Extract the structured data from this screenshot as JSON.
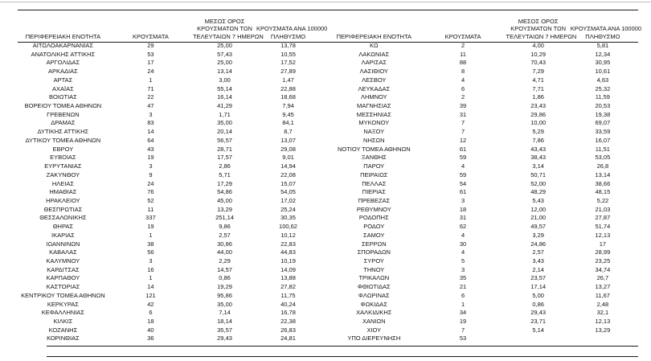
{
  "report": {
    "col_headers": {
      "region": "ΠΕΡΙΦΕΡΕΙΑΚΗ ΕΝΟΤΗΤΑ",
      "cases": "ΚΡΟΥΣΜΑΤΑ",
      "avg7_lines": [
        "ΜΕΣΟΣ ΟΡΟΣ",
        "ΚΡΟΥΣΜΑΤΩΝ ΤΩΝ",
        "ΤΕΛΕΥΤΑΙΩΝ 7 ΗΜΕΡΩΝ"
      ],
      "per100k_lines": [
        "ΚΡΟΥΣΜΑΤΑ ΑΝΑ 100000",
        "ΠΛΗΘΥΣΜΟ"
      ]
    },
    "left_table": {
      "rows": [
        [
          "ΑΙΤΩΛΟΑΚΑΡΝΑΝΙΑΣ",
          "29",
          "25,00",
          "13,78"
        ],
        [
          "ΑΝΑΤΟΛΙΚΗΣ ΑΤΤΙΚΗΣ",
          "53",
          "57,43",
          "10,55"
        ],
        [
          "ΑΡΓΟΛΙΔΑΣ",
          "17",
          "25,00",
          "17,52"
        ],
        [
          "ΑΡΚΑΔΙΑΣ",
          "24",
          "13,14",
          "27,89"
        ],
        [
          "ΑΡΤΑΣ",
          "1",
          "3,00",
          "1,47"
        ],
        [
          "ΑΧΑΪΑΣ",
          "71",
          "55,14",
          "22,88"
        ],
        [
          "ΒΟΙΩΤΙΑΣ",
          "22",
          "16,14",
          "18,68"
        ],
        [
          "ΒΟΡΕΙΟΥ ΤΟΜΕΑ ΑΘΗΝΩΝ",
          "47",
          "41,29",
          "7,94"
        ],
        [
          "ΓΡΕΒΕΝΩΝ",
          "3",
          "1,71",
          "9,45"
        ],
        [
          "ΔΡΑΜΑΣ",
          "83",
          "35,00",
          "84,1"
        ],
        [
          "ΔΥΤΙΚΗΣ ΑΤΤΙΚΗΣ",
          "14",
          "20,14",
          "8,7"
        ],
        [
          "ΔΥΤΙΚΟΥ ΤΟΜΕΑ ΑΘΗΝΩΝ",
          "64",
          "56,57",
          "13,07"
        ],
        [
          "ΕΒΡΟΥ",
          "43",
          "28,71",
          "29,08"
        ],
        [
          "ΕΥΒΟΙΑΣ",
          "19",
          "17,57",
          "9,01"
        ],
        [
          "ΕΥΡΥΤΑΝΙΑΣ",
          "3",
          "2,86",
          "14,94"
        ],
        [
          "ΖΑΚΥΝΘΟΥ",
          "9",
          "5,71",
          "22,08"
        ],
        [
          "ΗΛΕΙΑΣ",
          "24",
          "17,29",
          "15,07"
        ],
        [
          "ΗΜΑΘΙΑΣ",
          "76",
          "54,86",
          "54,05"
        ],
        [
          "ΗΡΑΚΛΕΙΟΥ",
          "52",
          "45,00",
          "17,02"
        ],
        [
          "ΘΕΣΠΡΩΤΙΑΣ",
          "11",
          "13,29",
          "25,24"
        ],
        [
          "ΘΕΣΣΑΛΟΝΙΚΗΣ",
          "337",
          "251,14",
          "30,35"
        ],
        [
          "ΘΗΡΑΣ",
          "19",
          "9,86",
          "100,62"
        ],
        [
          "ΙΚΑΡΙΑΣ",
          "1",
          "2,57",
          "10,12"
        ],
        [
          "ΙΩΑΝΝΙΝΩΝ",
          "38",
          "30,86",
          "22,83"
        ],
        [
          "ΚΑΒΑΛΑΣ",
          "56",
          "44,00",
          "44,83"
        ],
        [
          "ΚΑΛΥΜΝΟΥ",
          "3",
          "2,29",
          "10,19"
        ],
        [
          "ΚΑΡΔΙΤΣΑΣ",
          "16",
          "14,57",
          "14,09"
        ],
        [
          "ΚΑΡΠΑΘΟΥ",
          "1",
          "0,86",
          "13,88"
        ],
        [
          "ΚΑΣΤΟΡΙΑΣ",
          "14",
          "19,29",
          "27,82"
        ],
        [
          "ΚΕΝΤΡΙΚΟΥ ΤΟΜΕΑ ΑΘΗΝΩΝ",
          "121",
          "95,86",
          "11,75"
        ],
        [
          "ΚΕΡΚΥΡΑΣ",
          "42",
          "35,00",
          "40,24"
        ],
        [
          "ΚΕΦΑΛΛΗΝΙΑΣ",
          "6",
          "7,14",
          "16,78"
        ],
        [
          "ΚΙΛΚΙΣ",
          "18",
          "18,14",
          "22,38"
        ],
        [
          "ΚΟΖΑΝΗΣ",
          "40",
          "35,57",
          "26,83"
        ],
        [
          "ΚΟΡΙΝΘΙΑΣ",
          "36",
          "29,43",
          "24,81"
        ]
      ]
    },
    "right_table": {
      "rows": [
        [
          "ΚΩ",
          "2",
          "4,00",
          "5,81"
        ],
        [
          "ΛΑΚΩΝΙΑΣ",
          "11",
          "10,29",
          "12,34"
        ],
        [
          "ΛΑΡΙΣΑΣ",
          "88",
          "70,43",
          "30,95"
        ],
        [
          "ΛΑΣΙΘΙΟΥ",
          "8",
          "7,29",
          "10,61"
        ],
        [
          "ΛΕΣΒΟΥ",
          "4",
          "4,71",
          "4,63"
        ],
        [
          "ΛΕΥΚΑΔΑΣ",
          "6",
          "7,71",
          "25,32"
        ],
        [
          "ΛΗΜΝΟΥ",
          "2",
          "1,86",
          "11,59"
        ],
        [
          "ΜΑΓΝΗΣΙΑΣ",
          "39",
          "23,43",
          "20,53"
        ],
        [
          "ΜΕΣΣΗΝΙΑΣ",
          "31",
          "29,86",
          "19,38"
        ],
        [
          "ΜΥΚΟΝΟΥ",
          "7",
          "10,00",
          "69,07"
        ],
        [
          "ΝΑΞΟΥ",
          "7",
          "5,29",
          "33,59"
        ],
        [
          "ΝΗΣΩΝ",
          "12",
          "7,86",
          "16,07"
        ],
        [
          "ΝΟΤΙΟΥ ΤΟΜΕΑ ΑΘΗΝΩΝ",
          "61",
          "43,43",
          "11,51"
        ],
        [
          "ΞΑΝΘΗΣ",
          "59",
          "38,43",
          "53,05"
        ],
        [
          "ΠΑΡΟΥ",
          "4",
          "3,14",
          "26,8"
        ],
        [
          "ΠΕΙΡΑΙΩΣ",
          "59",
          "50,71",
          "13,14"
        ],
        [
          "ΠΕΛΛΑΣ",
          "54",
          "52,00",
          "38,66"
        ],
        [
          "ΠΙΕΡΙΑΣ",
          "61",
          "48,29",
          "48,15"
        ],
        [
          "ΠΡΕΒΕΖΑΣ",
          "3",
          "5,43",
          "5,22"
        ],
        [
          "ΡΕΘΥΜΝΟΥ",
          "18",
          "12,00",
          "21,03"
        ],
        [
          "ΡΟΔΟΠΗΣ",
          "31",
          "21,00",
          "27,87"
        ],
        [
          "ΡΟΔΟΥ",
          "62",
          "49,57",
          "51,74"
        ],
        [
          "ΣΑΜΟΥ",
          "4",
          "3,29",
          "12,13"
        ],
        [
          "ΣΕΡΡΩΝ",
          "30",
          "24,86",
          "17"
        ],
        [
          "ΣΠΟΡΑΔΩΝ",
          "4",
          "2,57",
          "28,99"
        ],
        [
          "ΣΥΡΟΥ",
          "5",
          "3,43",
          "23,25"
        ],
        [
          "ΤΗΝΟΥ",
          "3",
          "2,14",
          "34,74"
        ],
        [
          "ΤΡΙΚΑΛΩΝ",
          "35",
          "23,57",
          "26,7"
        ],
        [
          "ΦΘΙΩΤΙΔΑΣ",
          "21",
          "17,14",
          "13,27"
        ],
        [
          "ΦΛΩΡΙΝΑΣ",
          "6",
          "5,00",
          "11,67"
        ],
        [
          "ΦΩΚΙΔΑΣ",
          "1",
          "0,86",
          "2,48"
        ],
        [
          "ΧΑΛΚΙΔΙΚΗΣ",
          "34",
          "29,43",
          "32,1"
        ],
        [
          "ΧΑΝΙΩΝ",
          "19",
          "23,71",
          "12,13"
        ],
        [
          "ΧΙΟΥ",
          "7",
          "5,14",
          "13,29"
        ],
        [
          "ΥΠΟ ΔΙΕΡΕΥΝΗΣΗ",
          "53",
          "",
          ""
        ]
      ]
    }
  }
}
